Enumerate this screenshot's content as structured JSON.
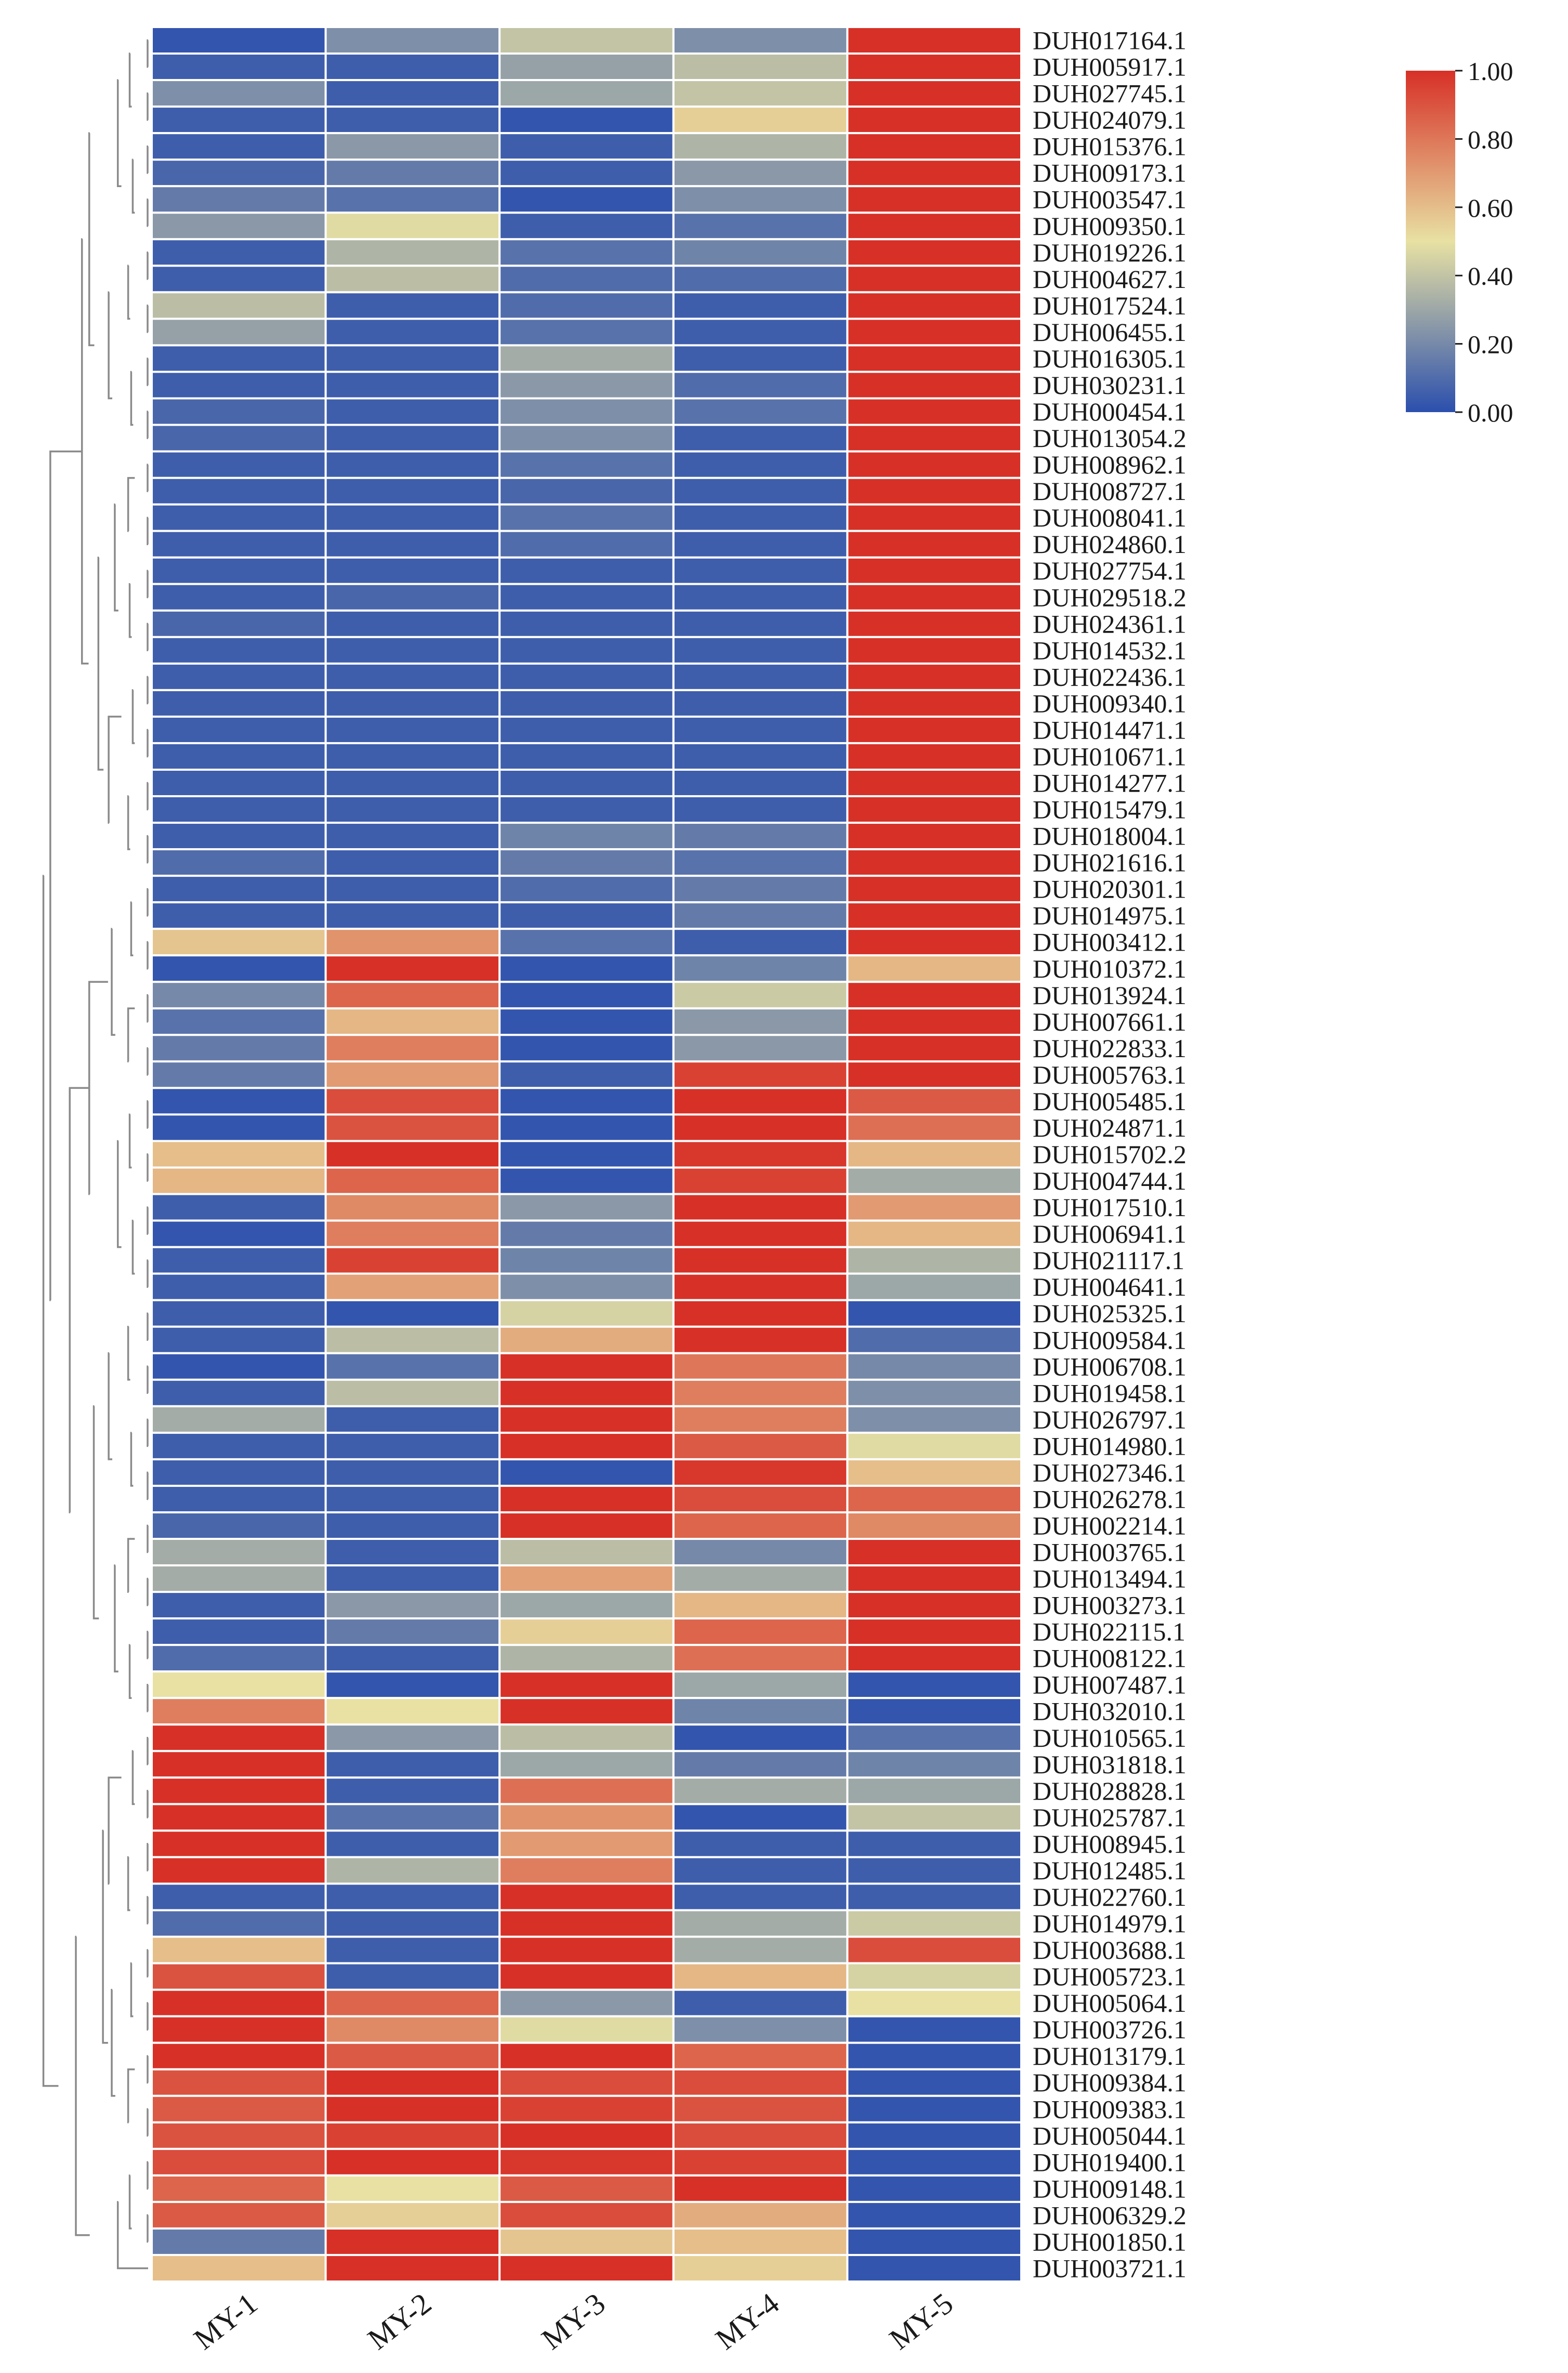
{
  "chart_data": {
    "type": "heatmap",
    "title": "",
    "xlabel": "",
    "ylabel": "",
    "columns": [
      "MY-1",
      "MY-2",
      "MY-3",
      "MY-4",
      "MY-5"
    ],
    "rows": [
      "DUH017164.1",
      "DUH005917.1",
      "DUH027745.1",
      "DUH024079.1",
      "DUH015376.1",
      "DUH009173.1",
      "DUH003547.1",
      "DUH009350.1",
      "DUH019226.1",
      "DUH004627.1",
      "DUH017524.1",
      "DUH006455.1",
      "DUH016305.1",
      "DUH030231.1",
      "DUH000454.1",
      "DUH013054.2",
      "DUH008962.1",
      "DUH008727.1",
      "DUH008041.1",
      "DUH024860.1",
      "DUH027754.1",
      "DUH029518.2",
      "DUH024361.1",
      "DUH014532.1",
      "DUH022436.1",
      "DUH009340.1",
      "DUH014471.1",
      "DUH010671.1",
      "DUH014277.1",
      "DUH015479.1",
      "DUH018004.1",
      "DUH021616.1",
      "DUH020301.1",
      "DUH014975.1",
      "DUH003412.1",
      "DUH010372.1",
      "DUH013924.1",
      "DUH007661.1",
      "DUH022833.1",
      "DUH005763.1",
      "DUH005485.1",
      "DUH024871.1",
      "DUH015702.2",
      "DUH004744.1",
      "DUH017510.1",
      "DUH006941.1",
      "DUH021117.1",
      "DUH004641.1",
      "DUH025325.1",
      "DUH009584.1",
      "DUH006708.1",
      "DUH019458.1",
      "DUH026797.1",
      "DUH014980.1",
      "DUH027346.1",
      "DUH026278.1",
      "DUH002214.1",
      "DUH003765.1",
      "DUH013494.1",
      "DUH003273.1",
      "DUH022115.1",
      "DUH008122.1",
      "DUH007487.1",
      "DUH032010.1",
      "DUH010565.1",
      "DUH031818.1",
      "DUH028828.1",
      "DUH025787.1",
      "DUH008945.1",
      "DUH012485.1",
      "DUH022760.1",
      "DUH014979.1",
      "DUH003688.1",
      "DUH005723.1",
      "DUH005064.1",
      "DUH003726.1",
      "DUH013179.1",
      "DUH009384.1",
      "DUH009383.1",
      "DUH005044.1",
      "DUH019400.1",
      "DUH009148.1",
      "DUH006329.2",
      "DUH001850.1",
      "DUH003721.1"
    ],
    "values": [
      [
        0.02,
        0.22,
        0.4,
        0.22,
        1.0
      ],
      [
        0.05,
        0.05,
        0.28,
        0.38,
        1.0
      ],
      [
        0.22,
        0.05,
        0.3,
        0.4,
        1.0
      ],
      [
        0.05,
        0.05,
        0.02,
        0.55,
        1.0
      ],
      [
        0.05,
        0.25,
        0.05,
        0.35,
        1.0
      ],
      [
        0.08,
        0.15,
        0.05,
        0.25,
        1.0
      ],
      [
        0.15,
        0.12,
        0.02,
        0.22,
        1.0
      ],
      [
        0.25,
        0.48,
        0.05,
        0.12,
        1.0
      ],
      [
        0.05,
        0.35,
        0.12,
        0.18,
        1.0
      ],
      [
        0.05,
        0.38,
        0.1,
        0.1,
        1.0
      ],
      [
        0.38,
        0.05,
        0.1,
        0.05,
        1.0
      ],
      [
        0.28,
        0.05,
        0.12,
        0.05,
        1.0
      ],
      [
        0.05,
        0.05,
        0.32,
        0.05,
        1.0
      ],
      [
        0.05,
        0.05,
        0.25,
        0.1,
        1.0
      ],
      [
        0.08,
        0.05,
        0.22,
        0.12,
        1.0
      ],
      [
        0.08,
        0.05,
        0.22,
        0.05,
        1.0
      ],
      [
        0.05,
        0.05,
        0.12,
        0.05,
        1.0
      ],
      [
        0.05,
        0.05,
        0.08,
        0.05,
        1.0
      ],
      [
        0.05,
        0.05,
        0.12,
        0.05,
        1.0
      ],
      [
        0.05,
        0.05,
        0.1,
        0.05,
        1.0
      ],
      [
        0.05,
        0.05,
        0.05,
        0.05,
        1.0
      ],
      [
        0.05,
        0.08,
        0.05,
        0.05,
        1.0
      ],
      [
        0.08,
        0.05,
        0.05,
        0.05,
        1.0
      ],
      [
        0.05,
        0.05,
        0.05,
        0.05,
        1.0
      ],
      [
        0.05,
        0.05,
        0.05,
        0.05,
        1.0
      ],
      [
        0.05,
        0.05,
        0.05,
        0.05,
        1.0
      ],
      [
        0.05,
        0.05,
        0.05,
        0.05,
        1.0
      ],
      [
        0.05,
        0.05,
        0.05,
        0.05,
        1.0
      ],
      [
        0.05,
        0.05,
        0.05,
        0.05,
        1.0
      ],
      [
        0.05,
        0.05,
        0.05,
        0.05,
        1.0
      ],
      [
        0.05,
        0.05,
        0.18,
        0.15,
        1.0
      ],
      [
        0.1,
        0.05,
        0.15,
        0.12,
        1.0
      ],
      [
        0.05,
        0.05,
        0.1,
        0.15,
        1.0
      ],
      [
        0.05,
        0.05,
        0.05,
        0.15,
        1.0
      ],
      [
        0.58,
        0.72,
        0.12,
        0.05,
        1.0
      ],
      [
        0.02,
        1.0,
        0.02,
        0.18,
        0.62
      ],
      [
        0.2,
        0.85,
        0.02,
        0.42,
        1.0
      ],
      [
        0.12,
        0.62,
        0.02,
        0.25,
        1.0
      ],
      [
        0.15,
        0.78,
        0.02,
        0.25,
        1.0
      ],
      [
        0.15,
        0.7,
        0.05,
        0.95,
        1.0
      ],
      [
        0.02,
        0.92,
        0.02,
        1.0,
        0.88
      ],
      [
        0.02,
        0.9,
        0.02,
        1.0,
        0.82
      ],
      [
        0.6,
        1.0,
        0.02,
        0.98,
        0.62
      ],
      [
        0.62,
        0.85,
        0.02,
        0.95,
        0.32
      ],
      [
        0.05,
        0.75,
        0.25,
        1.0,
        0.7
      ],
      [
        0.02,
        0.78,
        0.15,
        1.0,
        0.62
      ],
      [
        0.05,
        0.95,
        0.18,
        1.0,
        0.35
      ],
      [
        0.05,
        0.68,
        0.22,
        1.0,
        0.3
      ],
      [
        0.05,
        0.02,
        0.45,
        1.0,
        0.02
      ],
      [
        0.05,
        0.38,
        0.65,
        1.0,
        0.1
      ],
      [
        0.02,
        0.12,
        1.0,
        0.8,
        0.2
      ],
      [
        0.05,
        0.38,
        1.0,
        0.78,
        0.22
      ],
      [
        0.32,
        0.05,
        1.0,
        0.78,
        0.22
      ],
      [
        0.05,
        0.05,
        1.0,
        0.88,
        0.48
      ],
      [
        0.05,
        0.05,
        0.02,
        0.98,
        0.6
      ],
      [
        0.05,
        0.05,
        1.0,
        0.92,
        0.85
      ],
      [
        0.08,
        0.05,
        1.0,
        0.85,
        0.75
      ],
      [
        0.32,
        0.05,
        0.38,
        0.2,
        1.0
      ],
      [
        0.32,
        0.05,
        0.68,
        0.32,
        1.0
      ],
      [
        0.05,
        0.25,
        0.3,
        0.62,
        1.0
      ],
      [
        0.05,
        0.15,
        0.55,
        0.85,
        1.0
      ],
      [
        0.1,
        0.05,
        0.35,
        0.82,
        1.0
      ],
      [
        0.5,
        0.02,
        1.0,
        0.3,
        0.02
      ],
      [
        0.78,
        0.5,
        1.0,
        0.18,
        0.02
      ],
      [
        1.0,
        0.25,
        0.38,
        0.02,
        0.12
      ],
      [
        1.0,
        0.05,
        0.3,
        0.15,
        0.18
      ],
      [
        1.0,
        0.05,
        0.82,
        0.32,
        0.3
      ],
      [
        1.0,
        0.12,
        0.72,
        0.02,
        0.4
      ],
      [
        1.0,
        0.05,
        0.7,
        0.05,
        0.05
      ],
      [
        1.0,
        0.35,
        0.78,
        0.05,
        0.05
      ],
      [
        0.05,
        0.05,
        1.0,
        0.05,
        0.05
      ],
      [
        0.1,
        0.05,
        1.0,
        0.32,
        0.42
      ],
      [
        0.6,
        0.05,
        1.0,
        0.32,
        0.92
      ],
      [
        0.9,
        0.05,
        1.0,
        0.62,
        0.45
      ],
      [
        1.0,
        0.85,
        0.25,
        0.05,
        0.5
      ],
      [
        1.0,
        0.75,
        0.48,
        0.22,
        0.02
      ],
      [
        1.0,
        0.88,
        1.0,
        0.85,
        0.02
      ],
      [
        0.9,
        1.0,
        0.92,
        0.92,
        0.02
      ],
      [
        0.88,
        1.0,
        0.95,
        0.9,
        0.02
      ],
      [
        0.9,
        0.95,
        1.0,
        0.92,
        0.02
      ],
      [
        0.92,
        1.0,
        0.98,
        0.95,
        0.02
      ],
      [
        0.85,
        0.5,
        0.88,
        1.0,
        0.02
      ],
      [
        0.88,
        0.55,
        0.92,
        0.65,
        0.02
      ],
      [
        0.15,
        1.0,
        0.58,
        0.6,
        0.02
      ],
      [
        0.6,
        1.0,
        1.0,
        0.55,
        0.02
      ]
    ],
    "colorbar": {
      "min": 0.0,
      "max": 1.0,
      "ticks": [
        "0.00",
        "0.20",
        "0.40",
        "0.60",
        "0.80",
        "1.00"
      ],
      "colors": [
        "#2b4fad",
        "#e8e1a3",
        "#d73027"
      ]
    },
    "row_dendrogram": true
  }
}
